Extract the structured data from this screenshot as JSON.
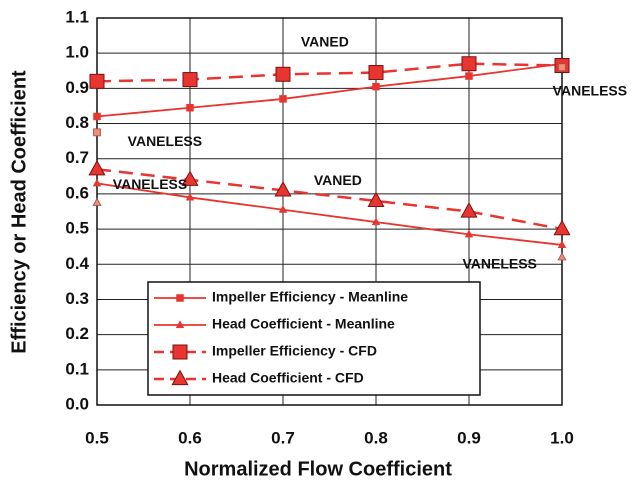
{
  "chart_data": {
    "type": "line",
    "x_label": "Normalized Flow Coefficient",
    "y_label": "Efficiency or Head Coefficient",
    "x": [
      0.5,
      0.6,
      0.7,
      0.8,
      0.9,
      1.0
    ],
    "xlim": [
      0.5,
      1.0
    ],
    "xticks": [
      0.5,
      0.6,
      0.7,
      0.8,
      0.9,
      {
        "value": 1,
        "label": "1.0"
      }
    ],
    "ylim": [
      0,
      1.1
    ],
    "yticks": [
      {
        "value": 0,
        "label": "0.0"
      },
      0.1,
      0.2,
      0.3,
      0.4,
      0.5,
      0.6,
      0.7,
      0.8,
      0.9,
      {
        "value": 1,
        "label": "1.0"
      },
      1.1
    ],
    "grid": true,
    "legend": "lower center",
    "series": [
      {
        "name": "Impeller Efficiency - Meanline",
        "color": "#e8352f",
        "marker": "square",
        "marker_size": "small",
        "dashed": false,
        "values": [
          0.82,
          0.845,
          0.87,
          0.905,
          0.935,
          0.97
        ]
      },
      {
        "name": "Head Coefficient - Meanline",
        "color": "#e8352f",
        "marker": "triangle",
        "marker_size": "small",
        "dashed": false,
        "values": [
          0.63,
          0.59,
          0.555,
          0.52,
          0.485,
          0.455
        ]
      },
      {
        "name": "Impeller Efficiency - CFD",
        "color": "#e8352f",
        "marker": "square",
        "marker_size": "large",
        "dashed": true,
        "values": [
          0.92,
          0.925,
          0.94,
          0.945,
          0.97,
          0.965
        ]
      },
      {
        "name": "Head Coefficient - CFD",
        "color": "#e8352f",
        "marker": "triangle",
        "marker_size": "large",
        "dashed": true,
        "values": [
          0.67,
          0.64,
          0.61,
          0.58,
          0.55,
          0.5
        ]
      }
    ],
    "extra_points": {
      "color": "#f08a7a",
      "x": [
        0.5,
        0.5,
        1.0,
        1.0
      ],
      "y": [
        0.775,
        0.575,
        0.42,
        0.96
      ],
      "markers": [
        "square",
        "triangle",
        "triangle",
        "square"
      ]
    },
    "annotations": [
      {
        "text": "VANED",
        "x": 0.745,
        "y": 1.03
      },
      {
        "text": "VANELESS",
        "x": 1.03,
        "y": 0.89
      },
      {
        "text": "VANELESS",
        "x": 0.573,
        "y": 0.747
      },
      {
        "text": "VANED",
        "x": 0.759,
        "y": 0.636
      },
      {
        "text": "VANELESS",
        "x": 0.557,
        "y": 0.625
      },
      {
        "text": "VANELESS",
        "x": 0.933,
        "y": 0.398
      }
    ]
  }
}
